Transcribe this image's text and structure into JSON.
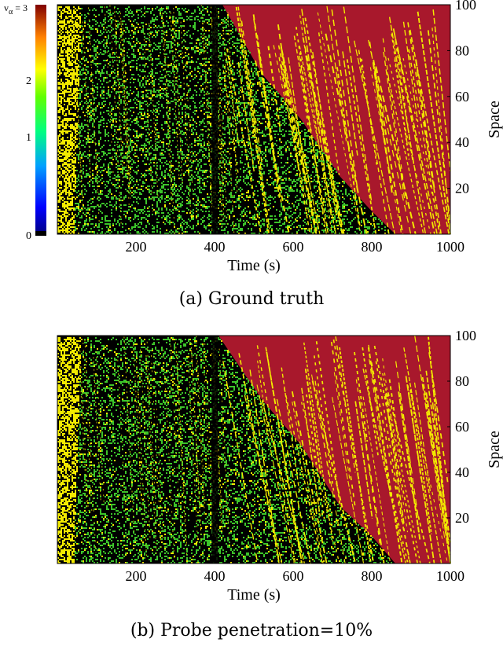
{
  "chart_data": [
    {
      "type": "heatmap",
      "caption": "(a) Ground truth",
      "xlabel": "Time (s)",
      "ylabel": "Space",
      "x_ticks": [
        200,
        400,
        600,
        800,
        1000
      ],
      "y_ticks": [
        20,
        40,
        60,
        80,
        100
      ],
      "xlim": [
        0,
        1000
      ],
      "ylim": [
        0,
        100
      ],
      "colorbar": {
        "label": "v",
        "label_subscript": "α",
        "top_tick": " = 3",
        "ticks": [
          "0",
          "1",
          "2"
        ],
        "range": [
          0,
          3
        ],
        "colormap": "jet"
      },
      "colors": {
        "empty": "#000000",
        "free_flow_fast": "#f2ea00",
        "congested_slow": "#3cc42a",
        "no_data": "#a8182c"
      },
      "regions": {
        "boundary": [
          [
            0,
            100
          ],
          [
            420,
            100
          ],
          [
            520,
            70
          ],
          [
            620,
            50
          ],
          [
            720,
            25
          ],
          [
            800,
            10
          ],
          [
            860,
            0
          ]
        ],
        "description": "dark green congested wave, yellow free-flow at start and in streaks, red region after wave"
      }
    },
    {
      "type": "heatmap",
      "caption": "(b) Probe penetration=10%",
      "xlabel": "Time (s)",
      "ylabel": "Space",
      "x_ticks": [
        200,
        400,
        600,
        800,
        1000
      ],
      "y_ticks": [
        20,
        40,
        60,
        80,
        100
      ],
      "xlim": [
        0,
        1000
      ],
      "ylim": [
        0,
        100
      ],
      "colors": {
        "empty": "#000000",
        "free_flow_fast": "#f2ea00",
        "congested_slow": "#3cc42a",
        "no_data": "#a8182c"
      },
      "regions": {
        "boundary": [
          [
            0,
            100
          ],
          [
            410,
            100
          ],
          [
            520,
            72
          ],
          [
            620,
            52
          ],
          [
            720,
            25
          ],
          [
            800,
            12
          ],
          [
            860,
            0
          ]
        ],
        "description": "similar to (a), reconstructed from 10% probes"
      }
    }
  ]
}
